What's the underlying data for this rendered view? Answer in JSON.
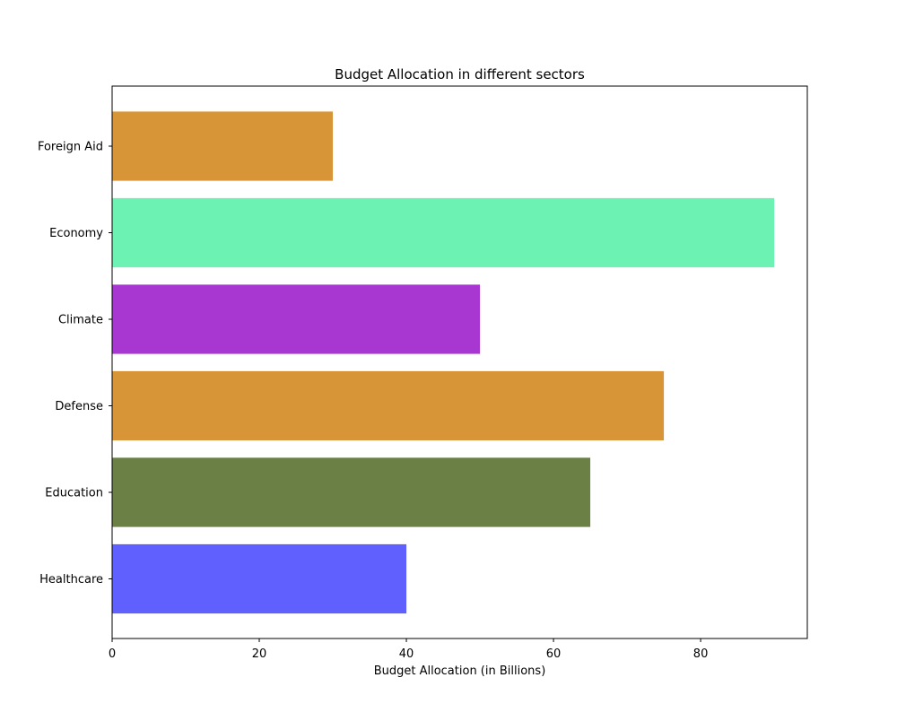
{
  "chart_data": {
    "type": "bar",
    "orientation": "horizontal",
    "title": "Budget Allocation in different sectors",
    "xlabel": "Budget Allocation (in Billions)",
    "ylabel": "",
    "categories": [
      "Healthcare",
      "Education",
      "Defense",
      "Climate",
      "Economy",
      "Foreign Aid"
    ],
    "values": [
      40,
      65,
      75,
      50,
      90,
      30
    ],
    "colors": [
      "#6060ff",
      "#6b8045",
      "#d79537",
      "#a836d0",
      "#6cf3b4",
      "#d79537"
    ],
    "xlim": [
      0,
      94.5
    ],
    "xticks": [
      0,
      20,
      40,
      60,
      80
    ],
    "grid": false,
    "legend": "none"
  }
}
